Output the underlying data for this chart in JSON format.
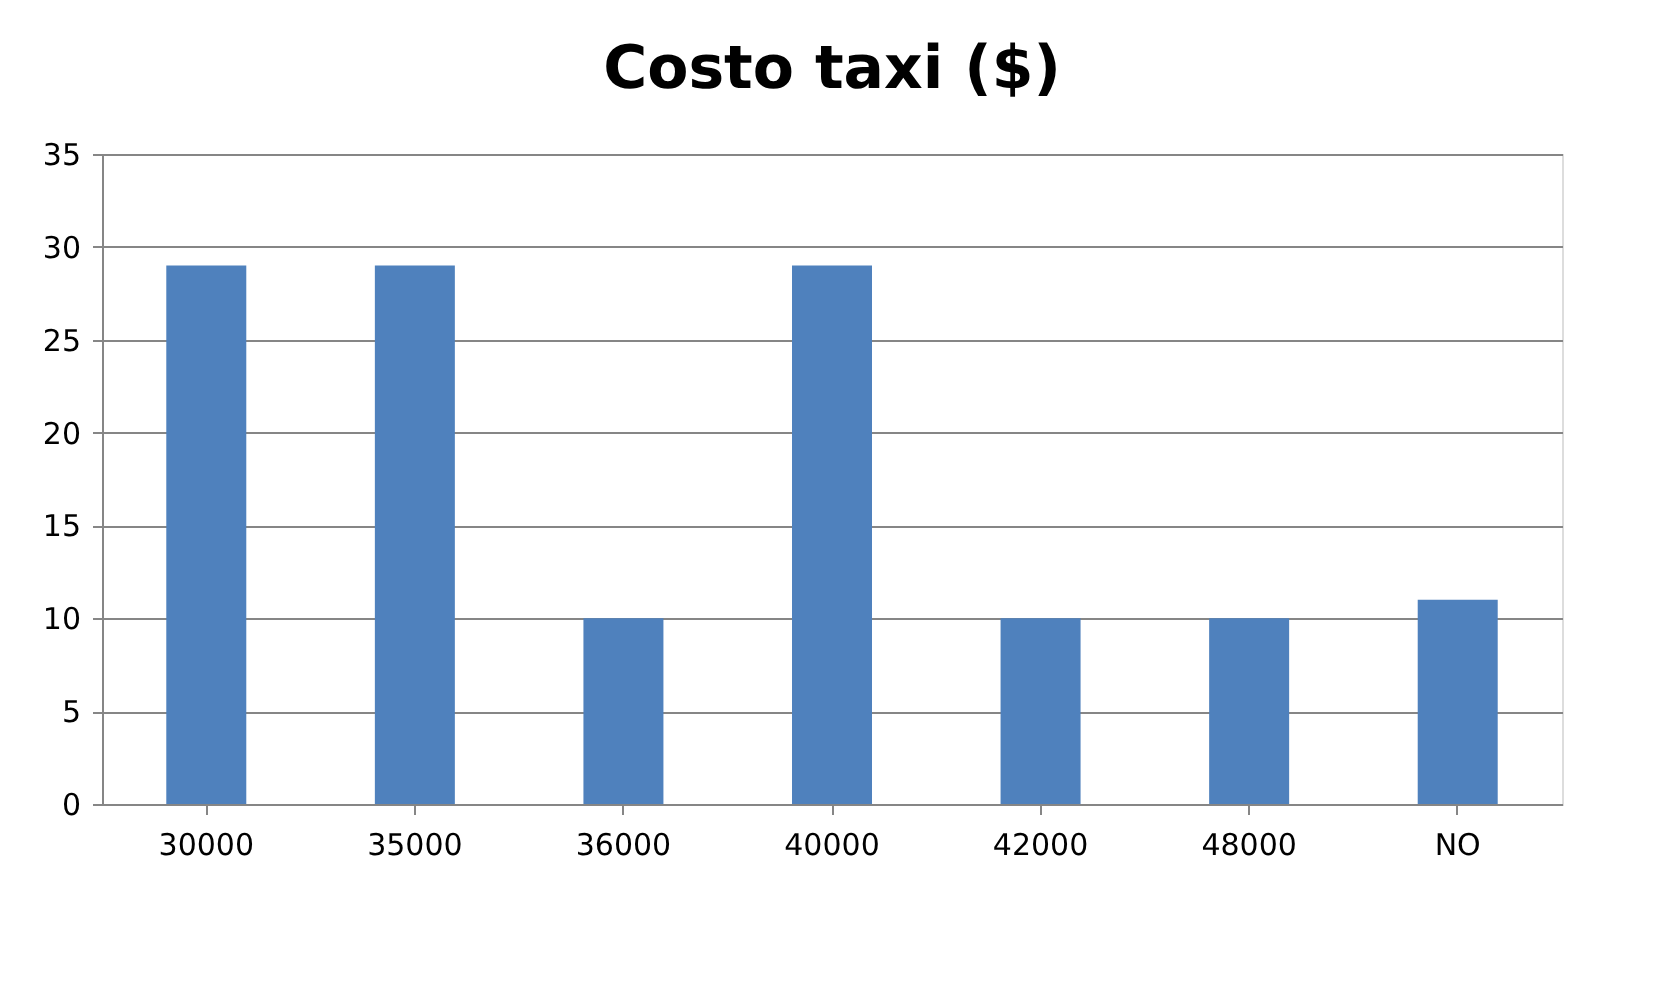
{
  "chart_data": {
    "type": "bar",
    "title": "Costo taxi ($)",
    "categories": [
      "30000",
      "35000",
      "36000",
      "40000",
      "42000",
      "48000",
      "NO"
    ],
    "values": [
      29,
      29,
      10,
      29,
      10,
      10,
      11
    ],
    "color": "#4f81bd",
    "ylim": [
      0,
      35
    ],
    "yticks": [
      0,
      5,
      10,
      15,
      20,
      25,
      30,
      35
    ],
    "grid": "y"
  }
}
